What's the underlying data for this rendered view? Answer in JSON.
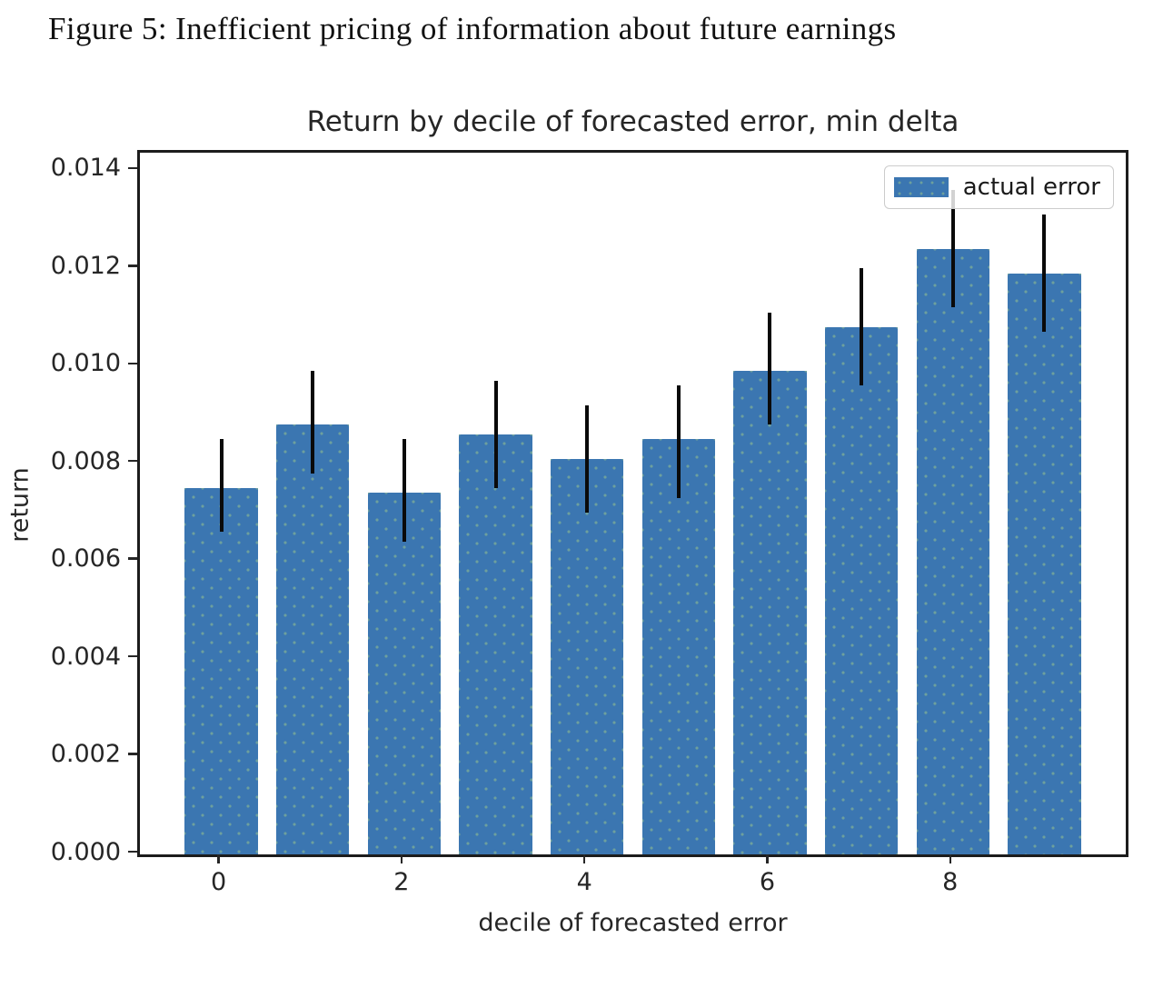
{
  "figure": {
    "caption": "Figure 5: Inefficient pricing of information about future earnings"
  },
  "chart_data": {
    "type": "bar",
    "title": "Return by decile of forecasted error, min delta",
    "xlabel": "decile of forecasted error",
    "ylabel": "return",
    "categories": [
      0,
      1,
      2,
      3,
      4,
      5,
      6,
      7,
      8,
      9
    ],
    "series": [
      {
        "name": "actual error",
        "values": [
          0.0075,
          0.0088,
          0.0074,
          0.0086,
          0.0081,
          0.0085,
          0.0099,
          0.0108,
          0.0124,
          0.0119
        ],
        "error_low": [
          0.0066,
          0.0078,
          0.0064,
          0.0075,
          0.007,
          0.0073,
          0.0088,
          0.0096,
          0.0112,
          0.0107
        ],
        "error_high": [
          0.0085,
          0.0099,
          0.0085,
          0.0097,
          0.0092,
          0.0096,
          0.0111,
          0.012,
          0.0136,
          0.0131
        ]
      }
    ],
    "bar_width": 0.8,
    "x_ticks": [
      0,
      2,
      4,
      6,
      8
    ],
    "y_ticks": [
      0.0,
      0.002,
      0.004,
      0.006,
      0.008,
      0.01,
      0.012,
      0.014
    ],
    "y_tick_decimals": 3,
    "xlim": [
      -0.89,
      9.89
    ],
    "ylim": [
      0,
      0.01437
    ],
    "grid": false,
    "legend": {
      "position": "upper right",
      "entries": [
        "actual error"
      ]
    },
    "colors": {
      "bar": "#3b76b1",
      "error_bar": "#0a0a0a",
      "axis": "#262626",
      "text": "#262626"
    }
  }
}
